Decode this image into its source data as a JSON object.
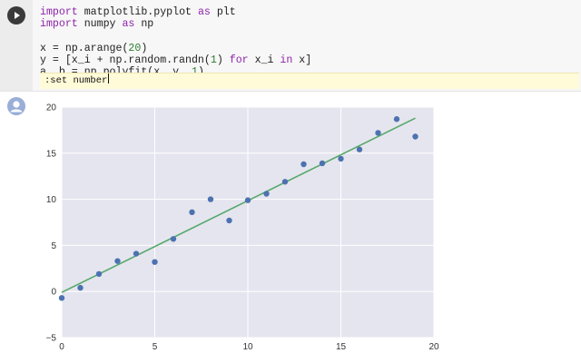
{
  "cell": {
    "run_button": "run-icon",
    "code_lines": [
      {
        "segments": [
          {
            "t": "import",
            "k": "kw"
          },
          {
            "t": " matplotlib.pyplot ",
            "k": ""
          },
          {
            "t": "as",
            "k": "kw"
          },
          {
            "t": " plt",
            "k": ""
          }
        ]
      },
      {
        "segments": [
          {
            "t": "import",
            "k": "kw"
          },
          {
            "t": " numpy ",
            "k": ""
          },
          {
            "t": "as",
            "k": "kw"
          },
          {
            "t": " np",
            "k": ""
          }
        ]
      },
      {
        "segments": [
          {
            "t": "",
            "k": ""
          }
        ]
      },
      {
        "segments": [
          {
            "t": "x = np.arange(",
            "k": ""
          },
          {
            "t": "20",
            "k": "num"
          },
          {
            "t": ")",
            "k": ""
          }
        ]
      },
      {
        "segments": [
          {
            "t": "y = [x_i + np.random.randn(",
            "k": ""
          },
          {
            "t": "1",
            "k": "num"
          },
          {
            "t": ") ",
            "k": ""
          },
          {
            "t": "for",
            "k": "kw"
          },
          {
            "t": " x_i ",
            "k": ""
          },
          {
            "t": "in",
            "k": "kw"
          },
          {
            "t": " x]",
            "k": ""
          }
        ]
      },
      {
        "segments": [
          {
            "t": "a, b = np.polyfit(x, y, ",
            "k": ""
          },
          {
            "t": "1",
            "k": "num"
          },
          {
            "t": ")",
            "k": ""
          }
        ]
      }
    ],
    "vim_command": ":set number"
  },
  "output": {
    "avatar_icon": "user-avatar-icon"
  },
  "chart_data": {
    "type": "scatter",
    "xlim": [
      0,
      20
    ],
    "ylim": [
      -5,
      20
    ],
    "xticks": [
      "0",
      "5",
      "10",
      "15",
      "20"
    ],
    "yticks": [
      "−5",
      "0",
      "5",
      "10",
      "15",
      "20"
    ],
    "grid": true,
    "background": "#e5e5ef",
    "point_color": "#4c72b0",
    "line_color": "#55a868",
    "points": {
      "x": [
        0,
        1,
        2,
        3,
        4,
        5,
        6,
        7,
        8,
        9,
        10,
        11,
        12,
        13,
        14,
        15,
        16,
        17,
        18,
        19
      ],
      "y": [
        -0.7,
        0.4,
        1.9,
        3.3,
        4.1,
        3.2,
        5.7,
        8.6,
        10.0,
        7.7,
        9.9,
        10.6,
        11.9,
        13.8,
        13.9,
        14.4,
        15.4,
        17.2,
        18.7,
        16.8
      ]
    },
    "fit_line": {
      "x": [
        0,
        19
      ],
      "y": [
        -0.1,
        18.8
      ]
    }
  }
}
